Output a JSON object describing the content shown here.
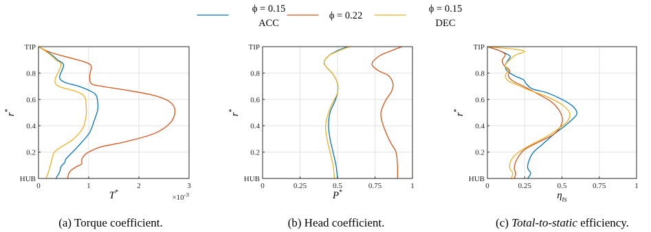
{
  "colors": {
    "acc": "#0072bd",
    "nom": "#d95319",
    "dec": "#edb120"
  },
  "legend": {
    "entries": [
      {
        "phi": "ϕ = 0.15",
        "sub": "ACC",
        "color": "#0072bd"
      },
      {
        "phi": "ϕ = 0.22",
        "sub": "",
        "color": "#d95319"
      },
      {
        "phi": "ϕ = 0.15",
        "sub": "DEC",
        "color": "#edb120"
      }
    ]
  },
  "chart_data": [
    {
      "type": "line",
      "caption": "(a) Torque coefficient.",
      "xlabel": "T*",
      "ylabel": "r*",
      "x_multiplier": "×10-3",
      "xlim": [
        0,
        3
      ],
      "ylim": [
        0,
        1
      ],
      "xticks": [
        0,
        1,
        2,
        3
      ],
      "xticklabels": [
        "0",
        "1",
        "2",
        "3"
      ],
      "yticks": [
        0,
        0.2,
        0.4,
        0.6,
        0.8,
        1
      ],
      "yticklabels": [
        "HUB",
        "0.2",
        "0.4",
        "0.6",
        "0.8",
        "TIP"
      ],
      "grid": true,
      "series": [
        {
          "name": "ϕ = 0.15 ACC",
          "color": "#0072bd",
          "x": [
            0.35,
            0.42,
            0.45,
            0.52,
            0.55,
            0.68,
            0.85,
            1.02,
            1.12,
            1.18,
            1.18,
            1.15,
            1.05,
            0.8,
            0.52,
            0.42,
            0.5,
            0.38,
            0.22,
            0
          ],
          "y": [
            0,
            0.05,
            0.09,
            0.12,
            0.15,
            0.2,
            0.27,
            0.35,
            0.45,
            0.52,
            0.58,
            0.63,
            0.66,
            0.7,
            0.73,
            0.77,
            0.86,
            0.9,
            0.95,
            1.0
          ]
        },
        {
          "name": "ϕ = 0.22",
          "color": "#d95319",
          "x": [
            0.58,
            0.62,
            0.76,
            0.86,
            0.86,
            0.9,
            1.0,
            1.25,
            1.75,
            2.3,
            2.62,
            2.72,
            2.62,
            2.3,
            1.75,
            1.25,
            1.05,
            1.02,
            1.05,
            0.95,
            0.68,
            0.38,
            0.15,
            0
          ],
          "y": [
            0,
            0.05,
            0.09,
            0.11,
            0.14,
            0.17,
            0.2,
            0.24,
            0.28,
            0.34,
            0.42,
            0.51,
            0.58,
            0.63,
            0.67,
            0.7,
            0.72,
            0.78,
            0.85,
            0.88,
            0.91,
            0.94,
            0.97,
            1.0
          ]
        },
        {
          "name": "ϕ = 0.15 DEC",
          "color": "#edb120",
          "x": [
            0.15,
            0.2,
            0.25,
            0.32,
            0.5,
            0.7,
            0.88,
            0.95,
            0.95,
            0.92,
            0.75,
            0.4,
            0.33,
            0.45,
            0.35,
            0.2,
            0
          ],
          "y": [
            0,
            0.05,
            0.12,
            0.2,
            0.25,
            0.3,
            0.38,
            0.48,
            0.55,
            0.62,
            0.66,
            0.7,
            0.75,
            0.86,
            0.9,
            0.95,
            1.0
          ]
        }
      ]
    },
    {
      "type": "line",
      "caption": "(b) Head coefficient.",
      "xlabel": "P*",
      "ylabel": "r*",
      "xlim": [
        0,
        1
      ],
      "ylim": [
        0,
        1
      ],
      "xticks": [
        0,
        0.25,
        0.5,
        0.75,
        1
      ],
      "xticklabels": [
        "0",
        "0.25",
        "0.5",
        "0.75",
        "1"
      ],
      "yticks": [
        0,
        0.2,
        0.4,
        0.6,
        0.8,
        1
      ],
      "yticklabels": [
        "HUB",
        "0.2",
        "0.4",
        "0.6",
        "0.8",
        "TIP"
      ],
      "grid": true,
      "series": [
        {
          "name": "ϕ = 0.15 ACC",
          "color": "#0072bd",
          "x": [
            0.5,
            0.49,
            0.47,
            0.45,
            0.44,
            0.45,
            0.48,
            0.5,
            0.5,
            0.47,
            0.43,
            0.41,
            0.44,
            0.5,
            0.57
          ],
          "y": [
            0,
            0.1,
            0.2,
            0.3,
            0.4,
            0.5,
            0.58,
            0.65,
            0.72,
            0.79,
            0.84,
            0.88,
            0.93,
            0.97,
            1.0
          ]
        },
        {
          "name": "ϕ = 0.22",
          "color": "#d95319",
          "x": [
            0.9,
            0.9,
            0.89,
            0.86,
            0.83,
            0.8,
            0.79,
            0.82,
            0.86,
            0.87,
            0.84,
            0.77,
            0.73,
            0.78,
            0.86,
            0.93
          ],
          "y": [
            0,
            0.1,
            0.2,
            0.26,
            0.33,
            0.42,
            0.5,
            0.59,
            0.66,
            0.72,
            0.78,
            0.82,
            0.87,
            0.93,
            0.97,
            1.0
          ]
        },
        {
          "name": "ϕ = 0.15 DEC",
          "color": "#edb120",
          "x": [
            0.48,
            0.47,
            0.45,
            0.43,
            0.42,
            0.44,
            0.47,
            0.5,
            0.5,
            0.47,
            0.43,
            0.41,
            0.44,
            0.51,
            0.58
          ],
          "y": [
            0,
            0.1,
            0.2,
            0.3,
            0.4,
            0.5,
            0.58,
            0.65,
            0.72,
            0.79,
            0.84,
            0.88,
            0.93,
            0.97,
            1.0
          ]
        }
      ]
    },
    {
      "type": "line",
      "caption": "(c) Total-to-static efficiency.",
      "xlabel": "ηts",
      "ylabel": "r*",
      "xlim": [
        0,
        1
      ],
      "ylim": [
        0,
        1
      ],
      "xticks": [
        0,
        0.25,
        0.5,
        0.75,
        1
      ],
      "xticklabels": [
        "0",
        "0.25",
        "0.5",
        "0.75",
        "1"
      ],
      "yticks": [
        0,
        0.2,
        0.4,
        0.6,
        0.8,
        1
      ],
      "yticklabels": [
        "HUB",
        "0.2",
        "0.4",
        "0.6",
        "0.8",
        "TIP"
      ],
      "grid": true,
      "series": [
        {
          "name": "ϕ = 0.15 ACC",
          "color": "#0072bd",
          "x": [
            0.27,
            0.29,
            0.27,
            0.28,
            0.31,
            0.37,
            0.44,
            0.52,
            0.58,
            0.6,
            0.57,
            0.5,
            0.4,
            0.3,
            0.26,
            0.24,
            0.18,
            0.13,
            0.12,
            0.14,
            0.15,
            0.08,
            0
          ],
          "y": [
            0,
            0.04,
            0.08,
            0.14,
            0.2,
            0.26,
            0.33,
            0.4,
            0.46,
            0.5,
            0.55,
            0.6,
            0.65,
            0.68,
            0.72,
            0.75,
            0.78,
            0.82,
            0.86,
            0.9,
            0.93,
            0.97,
            1.0
          ]
        },
        {
          "name": "ϕ = 0.22",
          "color": "#d95319",
          "x": [
            0.18,
            0.19,
            0.18,
            0.2,
            0.25,
            0.35,
            0.45,
            0.5,
            0.49,
            0.43,
            0.34,
            0.24,
            0.17,
            0.14,
            0.15,
            0.11,
            0.1,
            0.12,
            0.08,
            0
          ],
          "y": [
            0,
            0.04,
            0.08,
            0.15,
            0.22,
            0.28,
            0.34,
            0.42,
            0.5,
            0.58,
            0.64,
            0.7,
            0.74,
            0.78,
            0.82,
            0.86,
            0.9,
            0.94,
            0.97,
            1.0
          ]
        },
        {
          "name": "ϕ = 0.15 DEC",
          "color": "#edb120",
          "x": [
            0.16,
            0.17,
            0.15,
            0.16,
            0.21,
            0.3,
            0.4,
            0.48,
            0.54,
            0.55,
            0.5,
            0.4,
            0.28,
            0.2,
            0.14,
            0.12,
            0.14,
            0.12,
            0.18,
            0.24,
            0
          ],
          "y": [
            0,
            0.04,
            0.08,
            0.14,
            0.2,
            0.26,
            0.32,
            0.38,
            0.44,
            0.5,
            0.56,
            0.62,
            0.67,
            0.71,
            0.74,
            0.78,
            0.82,
            0.86,
            0.93,
            0.97,
            1.0
          ]
        }
      ]
    }
  ]
}
